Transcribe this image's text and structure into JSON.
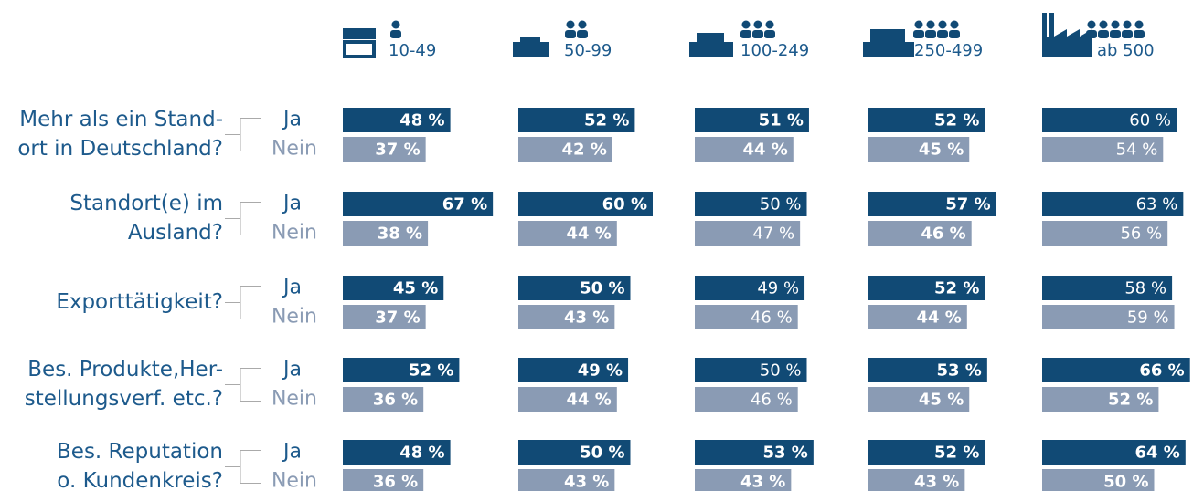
{
  "chart_data": {
    "type": "bar",
    "groups": [
      "10-49",
      "50-99",
      "100-249",
      "250-499",
      "ab 500"
    ],
    "categories": [
      [
        "Mehr als ein Stand-",
        "ort in Deutschland?"
      ],
      [
        "Standort(e) im",
        "Ausland?"
      ],
      [
        "Exporttätigkeit?"
      ],
      [
        "Bes. Produkte,Her-",
        "stellungsverf. etc.?"
      ],
      [
        "Bes. Reputation",
        "o. Kundenkreis?"
      ]
    ],
    "xlim": [
      0,
      100
    ],
    "series": [
      {
        "name": "Ja",
        "color": "#114a75",
        "values": [
          [
            48,
            52,
            51,
            52,
            60
          ],
          [
            67,
            60,
            50,
            57,
            63
          ],
          [
            45,
            50,
            49,
            52,
            58
          ],
          [
            52,
            49,
            50,
            53,
            66
          ],
          [
            48,
            50,
            53,
            52,
            64
          ]
        ],
        "value_labels": [
          [
            "48 %",
            "52 %",
            "51 %",
            "52 %",
            "60 %"
          ],
          [
            "67 %",
            "60 %",
            "50 %",
            "57 %",
            "63 %"
          ],
          [
            "45 %",
            "50 %",
            "49 %",
            "52 %",
            "58 %"
          ],
          [
            "52 %",
            "49 %",
            "50 %",
            "53 %",
            "66 %"
          ],
          [
            "48 %",
            "50 %",
            "53 %",
            "52 %",
            "64 %"
          ]
        ],
        "bold": [
          [
            true,
            true,
            true,
            true,
            false
          ],
          [
            true,
            true,
            false,
            true,
            false
          ],
          [
            true,
            true,
            false,
            true,
            false
          ],
          [
            true,
            true,
            false,
            true,
            true
          ],
          [
            true,
            true,
            true,
            true,
            true
          ]
        ]
      },
      {
        "name": "Nein",
        "color": "#8a9bb4",
        "values": [
          [
            37,
            42,
            44,
            45,
            54
          ],
          [
            38,
            44,
            47,
            46,
            56
          ],
          [
            37,
            43,
            46,
            44,
            59
          ],
          [
            36,
            44,
            46,
            45,
            52
          ],
          [
            36,
            43,
            43,
            43,
            50
          ]
        ],
        "value_labels": [
          [
            "37 %",
            "42 %",
            "44 %",
            "45 %",
            "54 %"
          ],
          [
            "38 %",
            "44 %",
            "47 %",
            "46 %",
            "56 %"
          ],
          [
            "37 %",
            "43 %",
            "46 %",
            "44 %",
            "59 %"
          ],
          [
            "36 %",
            "44 %",
            "46 %",
            "45 %",
            "52 %"
          ],
          [
            "36 %",
            "43 %",
            "43 %",
            "43 %",
            "50 %"
          ]
        ],
        "bold": [
          [
            true,
            true,
            true,
            true,
            false
          ],
          [
            true,
            true,
            false,
            true,
            false
          ],
          [
            true,
            true,
            false,
            true,
            false
          ],
          [
            true,
            true,
            false,
            true,
            true
          ],
          [
            true,
            true,
            true,
            true,
            true
          ]
        ]
      }
    ]
  }
}
